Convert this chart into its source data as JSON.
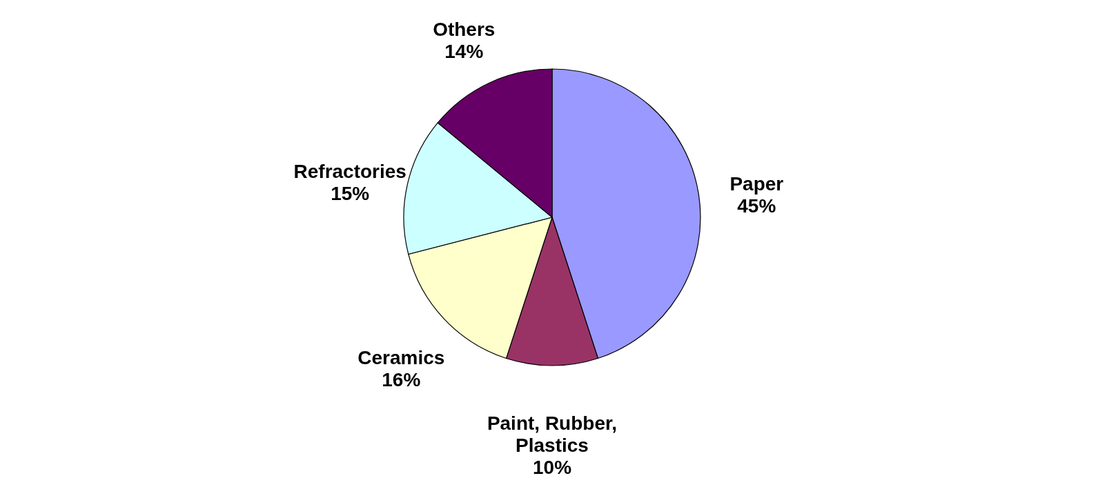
{
  "chart_data": {
    "type": "pie",
    "categories": [
      "Paper",
      "Paint, Rubber, Plastics",
      "Ceramics",
      "Refractories",
      "Others"
    ],
    "values": [
      45,
      10,
      16,
      15,
      14
    ],
    "value_labels": [
      "45%",
      "10%",
      "16%",
      "15%",
      "14%"
    ],
    "colors": [
      "#9999ff",
      "#993366",
      "#ffffcc",
      "#ccffff",
      "#660066"
    ],
    "legend": false
  }
}
